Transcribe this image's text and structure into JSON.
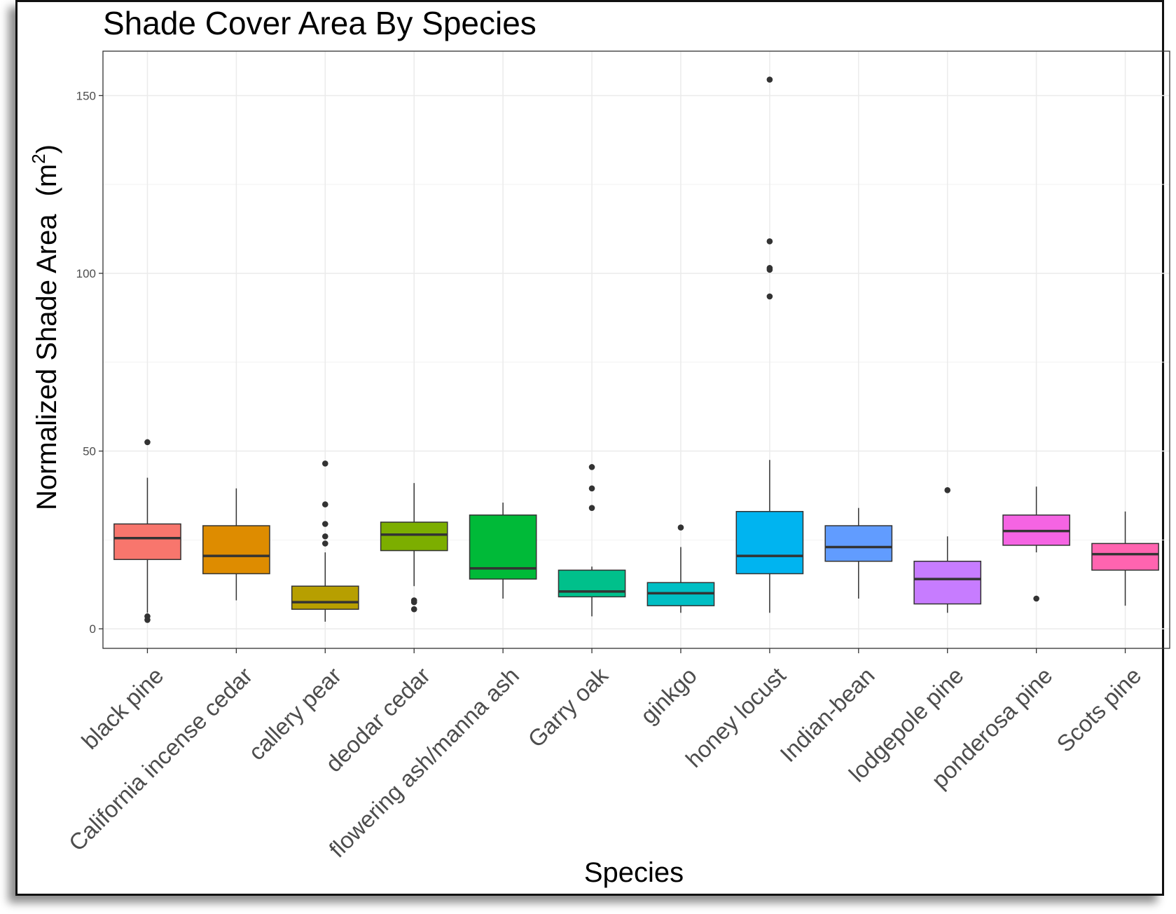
{
  "chart_data": {
    "type": "boxplot",
    "title": "Shade Cover Area By Species",
    "xlabel": "Species",
    "ylabel": "Normalized Shade Area",
    "ylabel_unit_base": "(m",
    "ylabel_unit_sup": "2",
    "ylabel_unit_close": ")",
    "ylim": [
      -5.5,
      162.5
    ],
    "yticks": [
      0,
      50,
      100,
      150
    ],
    "grid": true,
    "legend": "none",
    "categories": [
      {
        "name": "black pine",
        "color": "#F8766D",
        "min": 4.5,
        "q1": 19.5,
        "median": 25.5,
        "q3": 29.5,
        "max": 42.5,
        "outliers": [
          52.5,
          3.5,
          2.5
        ]
      },
      {
        "name": "California incense cedar",
        "color": "#DE8C00",
        "min": 8.0,
        "q1": 15.5,
        "median": 20.5,
        "q3": 29.0,
        "max": 39.5,
        "outliers": []
      },
      {
        "name": "callery pear",
        "color": "#B79F00",
        "min": 2.0,
        "q1": 5.5,
        "median": 7.5,
        "q3": 12.0,
        "max": 21.5,
        "outliers": [
          46.5,
          35.0,
          29.5,
          26.0,
          24.0
        ]
      },
      {
        "name": "deodar cedar",
        "color": "#7CAE00",
        "min": 12.0,
        "q1": 22.0,
        "median": 26.5,
        "q3": 30.0,
        "max": 41.0,
        "outliers": [
          8.0,
          7.5,
          5.5
        ]
      },
      {
        "name": "flowering ash/manna ash",
        "color": "#00BA38",
        "min": 8.5,
        "q1": 14.0,
        "median": 17.0,
        "q3": 32.0,
        "max": 35.5,
        "outliers": []
      },
      {
        "name": "Garry oak",
        "color": "#00C08B",
        "min": 3.5,
        "q1": 9.0,
        "median": 10.5,
        "q3": 16.5,
        "max": 17.5,
        "outliers": [
          45.5,
          39.5,
          34.0
        ]
      },
      {
        "name": "ginkgo",
        "color": "#00BFC4",
        "min": 4.5,
        "q1": 6.5,
        "median": 10.0,
        "q3": 13.0,
        "max": 23.0,
        "outliers": [
          28.5
        ]
      },
      {
        "name": "honey locust",
        "color": "#00B4F0",
        "min": 4.5,
        "q1": 15.5,
        "median": 20.5,
        "q3": 33.0,
        "max": 47.5,
        "outliers": [
          154.5,
          109.0,
          101.5,
          101.0,
          93.5
        ]
      },
      {
        "name": "Indian-bean",
        "color": "#619CFF",
        "min": 8.5,
        "q1": 19.0,
        "median": 23.0,
        "q3": 29.0,
        "max": 34.0,
        "outliers": []
      },
      {
        "name": "lodgepole pine",
        "color": "#C77CFF",
        "min": 4.5,
        "q1": 7.0,
        "median": 14.0,
        "q3": 19.0,
        "max": 26.0,
        "outliers": [
          39.0
        ]
      },
      {
        "name": "ponderosa pine",
        "color": "#F564E3",
        "min": 21.5,
        "q1": 23.5,
        "median": 27.5,
        "q3": 32.0,
        "max": 40.0,
        "outliers": [
          8.5
        ]
      },
      {
        "name": "Scots pine",
        "color": "#FF64B0",
        "min": 6.5,
        "q1": 16.5,
        "median": 21.0,
        "q3": 24.0,
        "max": 33.0,
        "outliers": []
      }
    ]
  }
}
